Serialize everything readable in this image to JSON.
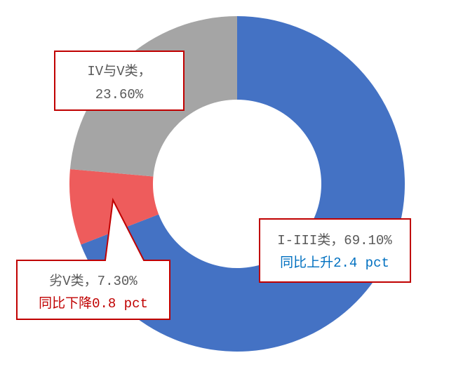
{
  "chart_data": {
    "type": "pie",
    "variant": "donut",
    "start": "top, clockwise",
    "slices": [
      {
        "name": "I-III类",
        "value": 69.1,
        "color": "#4472c4"
      },
      {
        "name": "劣V类",
        "value": 7.3,
        "color": "#ee5c5c"
      },
      {
        "name": "IV与V类",
        "value": 23.6,
        "color": "#a5a5a5"
      }
    ],
    "labels": {
      "grade_1_3": {
        "line1": "I-III类，69.10%",
        "line2": "同比上升2.4 pct",
        "line2_color": "#0070c0"
      },
      "grade_below_5": {
        "line1": "劣V类，7.30%",
        "line2": "同比下降0.8 pct",
        "line2_color": "#c00000"
      },
      "grade_4_5": {
        "line1": "IV与V类，",
        "line2": "23.60%"
      }
    },
    "label_text_color": "#595959",
    "callout_border_color": "#c00000"
  }
}
